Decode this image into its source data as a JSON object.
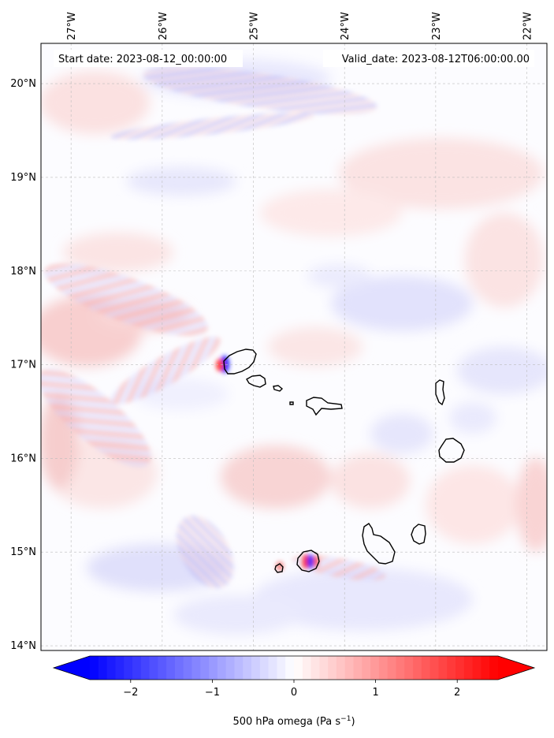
{
  "map": {
    "start_label": "Start date: 2023-08-12_00:00:00",
    "valid_label": "Valid_date: 2023-08-12T06:00:00.00",
    "lon_labels": [
      "27°W",
      "26°W",
      "25°W",
      "24°W",
      "23°W",
      "22°W"
    ],
    "lat_labels": [
      "20°N",
      "19°N",
      "18°N",
      "17°N",
      "16°N",
      "15°N",
      "14°N"
    ],
    "lon_values": [
      -27,
      -26,
      -25,
      -24,
      -23,
      -22
    ],
    "lat_values": [
      20,
      19,
      18,
      17,
      16,
      15,
      14
    ],
    "extent": {
      "lon": [
        -27.33,
        -21.78
      ],
      "lat": [
        13.95,
        20.43
      ]
    },
    "field": "500 hPa omega",
    "islands": [
      "Santo Antão",
      "São Vicente",
      "Santa Luzia",
      "Branco",
      "São Nicolau",
      "Sal",
      "Boa Vista",
      "Maio",
      "Santiago",
      "Fogo",
      "Brava"
    ]
  },
  "colorbar": {
    "label_main": "500 hPa omega (Pa s",
    "label_exp": "−1",
    "label_close": ")",
    "tick_labels": [
      "−2",
      "−1",
      "0",
      "1",
      "2"
    ],
    "tick_values": [
      -2,
      -1,
      0,
      1,
      2
    ],
    "range": [
      -2.5,
      2.5
    ],
    "colormap": "bwr",
    "extend": "both",
    "colors": {
      "low": "#0000ff",
      "mid": "#ffffff",
      "high": "#ff0000"
    }
  }
}
